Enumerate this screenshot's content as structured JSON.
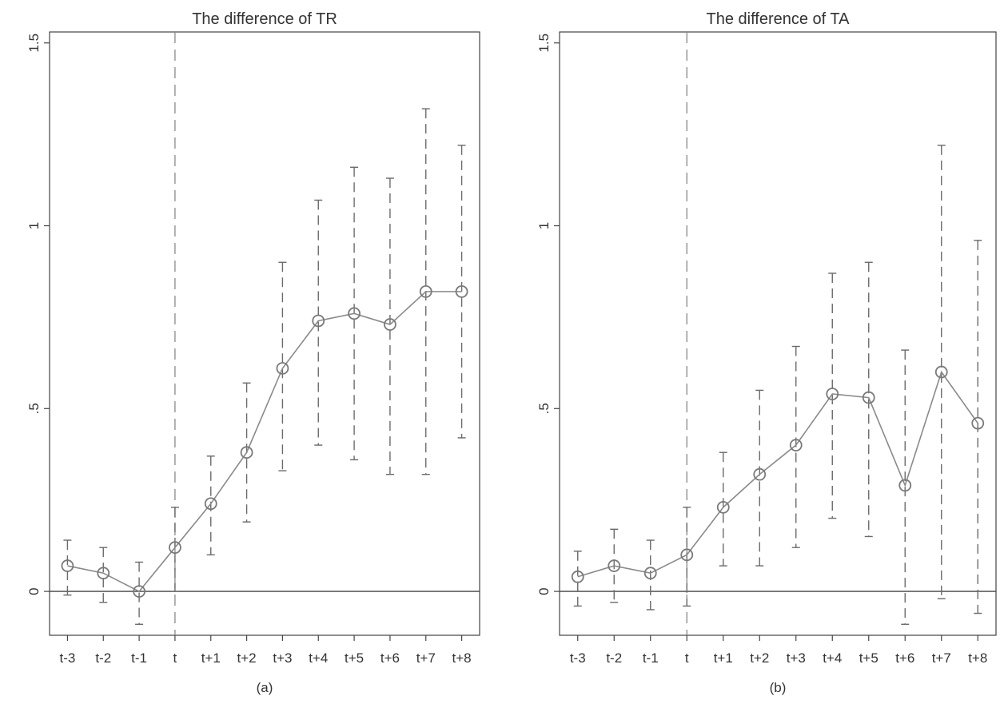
{
  "chart_data": [
    {
      "type": "line",
      "title": "The difference of TR",
      "caption": "(a)",
      "categories": [
        "t-3",
        "t-2",
        "t-1",
        "t",
        "t+1",
        "t+2",
        "t+3",
        "t+4",
        "t+5",
        "t+6",
        "t+7",
        "t+8"
      ],
      "values": [
        0.07,
        0.05,
        0.0,
        0.12,
        0.24,
        0.38,
        0.61,
        0.74,
        0.76,
        0.73,
        0.82,
        0.82
      ],
      "ci_lower": [
        -0.01,
        -0.03,
        -0.09,
        0.0,
        0.1,
        0.19,
        0.33,
        0.4,
        0.36,
        0.32,
        0.32,
        0.42
      ],
      "ci_upper": [
        0.14,
        0.12,
        0.08,
        0.23,
        0.37,
        0.57,
        0.9,
        1.07,
        1.16,
        1.13,
        1.32,
        1.22
      ],
      "event_marker": "t",
      "reference_line": 0,
      "ylim": [
        -0.12,
        1.53
      ],
      "yticks": [
        {
          "value": 0,
          "label": "0"
        },
        {
          "value": 0.5,
          "label": ".5"
        },
        {
          "value": 1,
          "label": "1"
        },
        {
          "value": 1.5,
          "label": "1.5"
        }
      ],
      "grid": false
    },
    {
      "type": "line",
      "title": "The difference of TA",
      "caption": "(b)",
      "categories": [
        "t-3",
        "t-2",
        "t-1",
        "t",
        "t+1",
        "t+2",
        "t+3",
        "t+4",
        "t+5",
        "t+6",
        "t+7",
        "t+8"
      ],
      "values": [
        0.04,
        0.07,
        0.05,
        0.1,
        0.23,
        0.32,
        0.4,
        0.54,
        0.53,
        0.29,
        0.6,
        0.46
      ],
      "ci_lower": [
        -0.04,
        -0.03,
        -0.05,
        -0.04,
        0.07,
        0.07,
        0.12,
        0.2,
        0.15,
        -0.09,
        -0.02,
        -0.06
      ],
      "ci_upper": [
        0.11,
        0.17,
        0.14,
        0.23,
        0.38,
        0.55,
        0.67,
        0.87,
        0.9,
        0.66,
        1.22,
        0.96
      ],
      "event_marker": "t",
      "reference_line": 0,
      "ylim": [
        -0.12,
        1.53
      ],
      "yticks": [
        {
          "value": 0,
          "label": "0"
        },
        {
          "value": 0.5,
          "label": ".5"
        },
        {
          "value": 1,
          "label": "1"
        },
        {
          "value": 1.5,
          "label": "1.5"
        }
      ],
      "grid": false
    }
  ],
  "colors": {
    "line": "#8a8a8a",
    "marker": "#7a7a7a",
    "ci": "#6a6a6a",
    "axis": "#444444",
    "reference": "#444444",
    "event_line": "#888888"
  }
}
